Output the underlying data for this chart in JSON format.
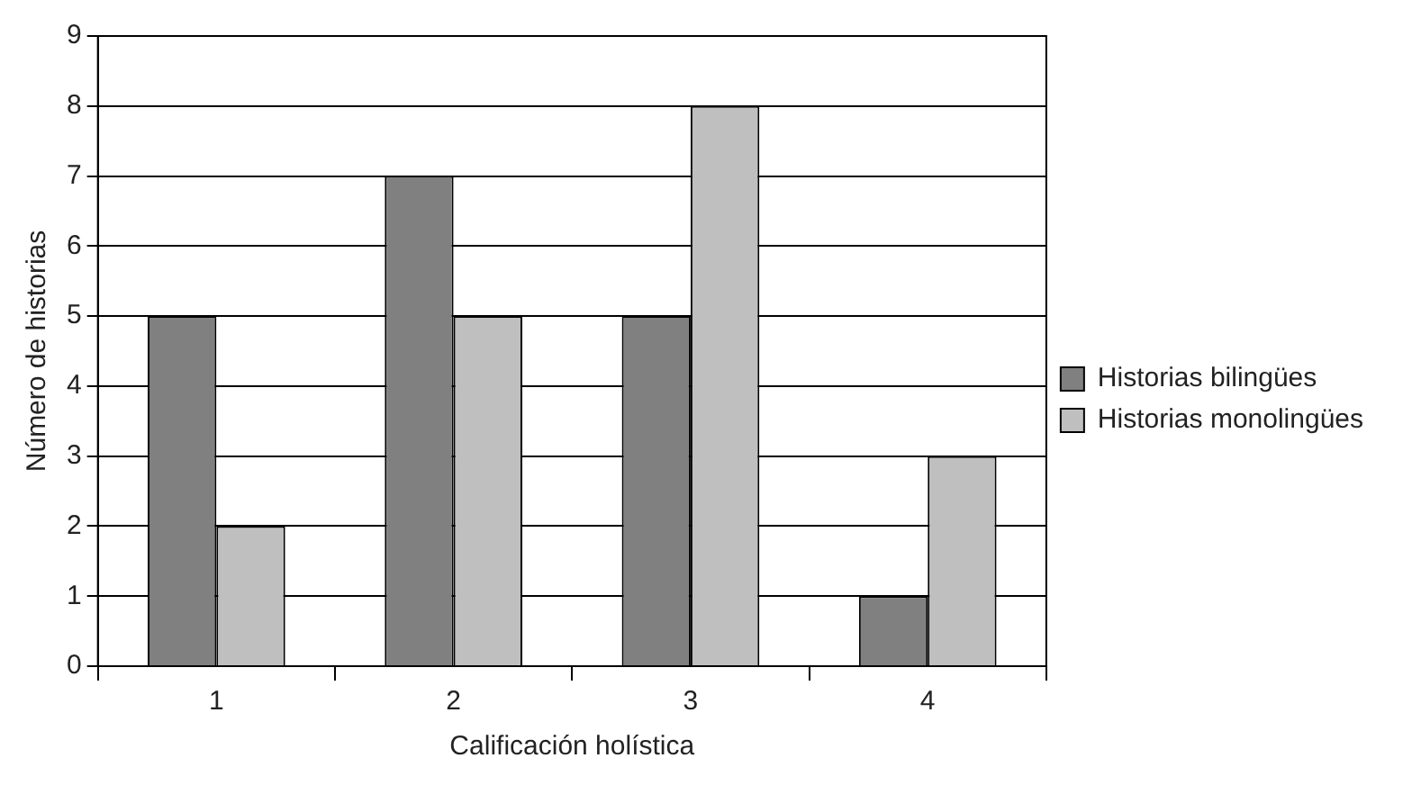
{
  "chart_data": {
    "type": "bar",
    "xlabel": "Calificación holística",
    "ylabel": "Número de historias",
    "categories": [
      "1",
      "2",
      "3",
      "4"
    ],
    "series": [
      {
        "name": "Historias bilingües",
        "color": "#808080",
        "values": [
          5,
          7,
          5,
          1
        ]
      },
      {
        "name": "Historias monolingües",
        "color": "#bfbfbf",
        "values": [
          2,
          5,
          8,
          3
        ]
      }
    ],
    "ylim": [
      0,
      9
    ],
    "yticks": [
      0,
      1,
      2,
      3,
      4,
      5,
      6,
      7,
      8,
      9
    ],
    "grid": "y",
    "legend": "right"
  }
}
